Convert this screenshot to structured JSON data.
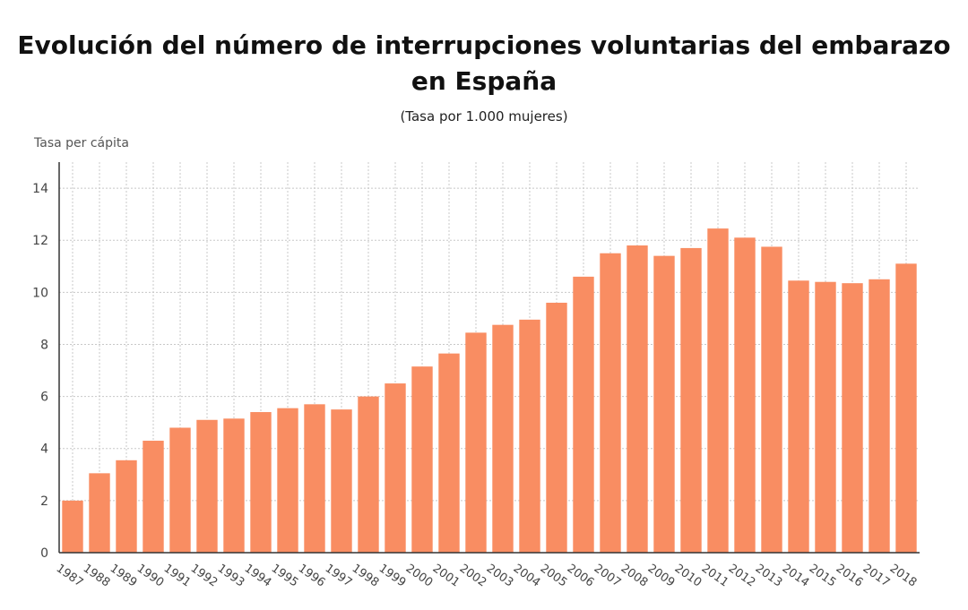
{
  "title_line1": "Evolución del número de interrupciones voluntarias del embarazo",
  "title_line2": "en España",
  "subtitle": "(Tasa por 1.000 mujeres)",
  "colors": {
    "bar": "#f98d62",
    "grid": "#c8c8c8",
    "axis": "#333333"
  },
  "chart_data": {
    "type": "bar",
    "title": "Evolución del número de interrupciones voluntarias del embarazo en España",
    "subtitle": "(Tasa por 1.000 mujeres)",
    "xlabel": "",
    "ylabel": "Tasa per cápita",
    "ylim": [
      0,
      15
    ],
    "yticks": [
      0,
      2,
      4,
      6,
      8,
      10,
      12,
      14
    ],
    "grid": true,
    "categories": [
      "1987",
      "1988",
      "1989",
      "1990",
      "1991",
      "1992",
      "1993",
      "1994",
      "1995",
      "1996",
      "1997",
      "1998",
      "1999",
      "2000",
      "2001",
      "2002",
      "2003",
      "2004",
      "2005",
      "2006",
      "2007",
      "2008",
      "2009",
      "2010",
      "2011",
      "2012",
      "2013",
      "2014",
      "2015",
      "2016",
      "2017",
      "2018"
    ],
    "values": [
      2.0,
      3.05,
      3.55,
      4.3,
      4.8,
      5.1,
      5.15,
      5.4,
      5.55,
      5.7,
      5.5,
      6.0,
      6.5,
      7.15,
      7.65,
      8.45,
      8.75,
      8.95,
      9.6,
      10.6,
      11.5,
      11.8,
      11.4,
      11.7,
      12.45,
      12.1,
      11.75,
      10.45,
      10.4,
      10.35,
      10.5,
      11.1
    ]
  }
}
